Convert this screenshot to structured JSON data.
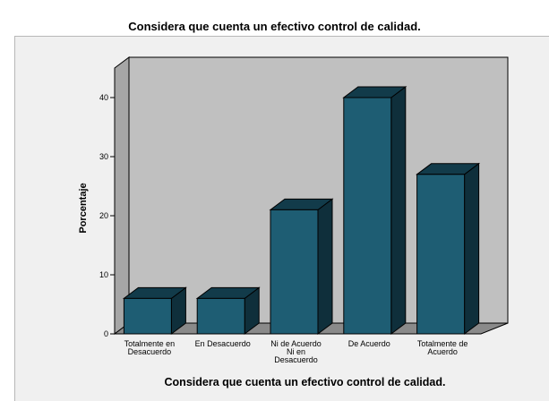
{
  "page_title": "Considera que cuenta un efectivo control de calidad.",
  "chart_data": {
    "type": "bar",
    "title": "Considera que cuenta un efectivo control de calidad.",
    "xlabel": "Considera que cuenta un efectivo control de calidad.",
    "ylabel": "Porcentaje",
    "categories": [
      [
        "Totalmente en",
        "Desacuerdo"
      ],
      [
        "En Desacuerdo"
      ],
      [
        "Ni de Acuerdo",
        "Ni en",
        "Desacuerdo"
      ],
      [
        "De Acuerdo"
      ],
      [
        "Totalmente de",
        "Acuerdo"
      ]
    ],
    "values": [
      6,
      6,
      21,
      40,
      27
    ],
    "ylim": [
      0,
      45
    ],
    "yticks": [
      0,
      10,
      20,
      30,
      40
    ],
    "style": "3d",
    "grid": false,
    "colors": {
      "bar_front": "#1e5d73",
      "bar_top": "#123b4a",
      "bar_side": "#0f2f3b",
      "wall": "#c0c0c0",
      "floor": "#8a8a8a",
      "frame_bg": "#f0f0f0"
    }
  }
}
